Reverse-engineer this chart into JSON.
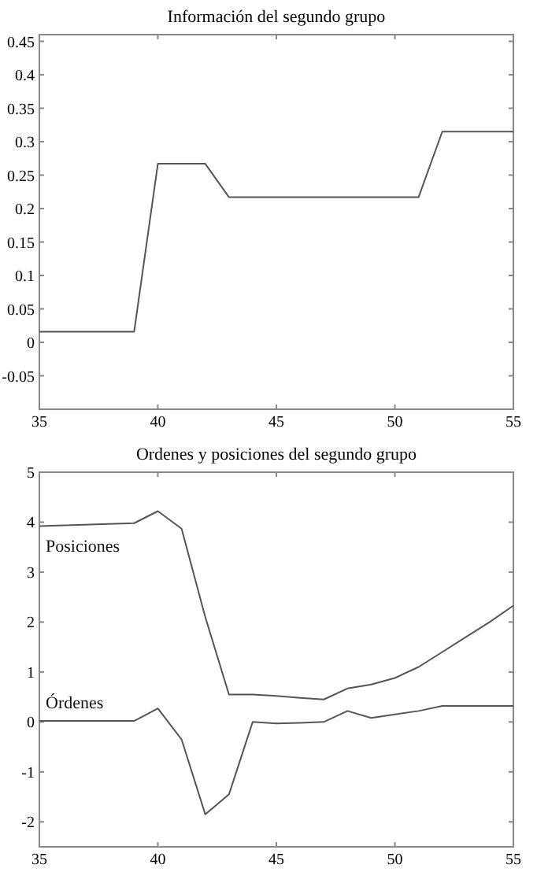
{
  "chart_data": [
    {
      "type": "line",
      "title": "Información del segundo grupo",
      "x": [
        35,
        39,
        40,
        42,
        43,
        51,
        52,
        55
      ],
      "series": [
        {
          "color": "#555555",
          "values": [
            0.016,
            0.016,
            0.267,
            0.267,
            0.217,
            0.217,
            0.315,
            0.315
          ]
        }
      ],
      "xlim": [
        35,
        55
      ],
      "xticks": [
        35,
        40,
        45,
        50,
        55
      ],
      "ylim": [
        -0.1,
        0.46
      ],
      "yticks": [
        -0.05,
        0,
        0.05,
        0.1,
        0.15,
        0.2,
        0.25,
        0.3,
        0.35,
        0.4,
        0.45
      ],
      "grid": false
    },
    {
      "type": "line",
      "title": "Ordenes y posiciones del segundo grupo",
      "xlim": [
        35,
        55
      ],
      "xticks": [
        35,
        40,
        45,
        50,
        55
      ],
      "ylim": [
        -2.5,
        5
      ],
      "yticks": [
        -2,
        -1,
        0,
        1,
        2,
        3,
        4,
        5
      ],
      "grid": false,
      "series": [
        {
          "name": "Posiciones",
          "color": "#555555",
          "x": [
            35,
            39,
            40,
            41,
            42,
            43,
            44,
            45,
            46,
            47,
            48,
            49,
            50,
            51,
            52,
            53,
            54,
            55
          ],
          "values": [
            3.92,
            3.98,
            4.22,
            3.87,
            2.1,
            0.55,
            0.55,
            0.52,
            0.48,
            0.45,
            0.67,
            0.75,
            0.88,
            1.1,
            1.4,
            1.7,
            2.0,
            2.33
          ]
        },
        {
          "name": "Órdenes",
          "color": "#555555",
          "x": [
            35,
            39,
            40,
            41,
            42,
            43,
            44,
            45,
            46,
            47,
            48,
            49,
            50,
            51,
            52,
            55
          ],
          "values": [
            0.02,
            0.02,
            0.27,
            -0.35,
            -1.85,
            -1.45,
            0,
            -0.03,
            -0.02,
            0,
            0.22,
            0.08,
            0.15,
            0.22,
            0.32,
            0.32
          ]
        }
      ]
    }
  ]
}
